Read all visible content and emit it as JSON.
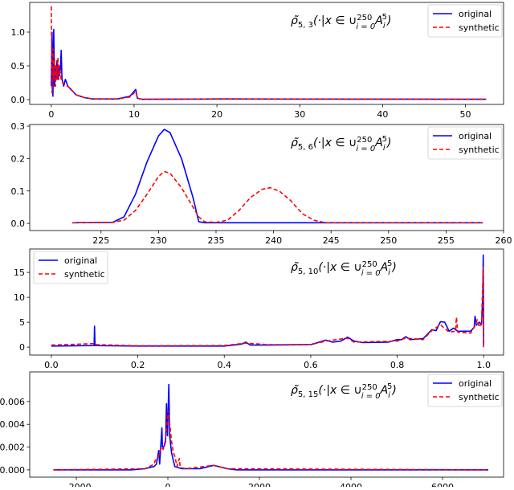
{
  "chart_data": [
    {
      "type": "line",
      "title": {
        "rho": "ρ̃",
        "sub": "5, 3",
        "cond": "(·|x ∈ ∪",
        "sup_n": "250",
        "sub_i": "i = 0",
        "A": "A",
        "A_sub": "i",
        "A_sup": "5",
        "close": ")"
      },
      "xlim": [
        -2.6,
        54.6
      ],
      "ylim": [
        -0.071,
        1.44
      ],
      "xticks": [
        0,
        10,
        20,
        30,
        40,
        50
      ],
      "xtick_labels": [
        "0",
        "10",
        "20",
        "30",
        "40",
        "50"
      ],
      "yticks": [
        0,
        0.5,
        1.0
      ],
      "ytick_labels": [
        "0.0",
        "0.5",
        "1.0"
      ],
      "legend": "upper-right",
      "grid": false,
      "series": [
        {
          "name": "original",
          "color": "#0000ff",
          "style": "solid",
          "x": [
            0,
            0.1,
            0.2,
            0.3,
            0.4,
            0.5,
            0.6,
            0.7,
            0.8,
            0.9,
            1.0,
            1.1,
            1.2,
            1.3,
            1.5,
            1.7,
            2,
            3,
            4,
            5,
            8,
            9.5,
            10.2,
            10.4,
            11,
            20,
            52.5
          ],
          "y": [
            0.2,
            1.0,
            0.05,
            1.04,
            0.2,
            0.5,
            0.3,
            0.58,
            0.3,
            0.5,
            0.35,
            0.45,
            0.73,
            0.3,
            0.2,
            0.3,
            0.2,
            0.07,
            0.03,
            0.01,
            0.01,
            0.05,
            0.15,
            0.02,
            0.005,
            0.01,
            0.005
          ]
        },
        {
          "name": "synthetic",
          "color": "#ff0000",
          "style": "dashed",
          "x": [
            0,
            0.1,
            0.2,
            0.3,
            0.4,
            0.5,
            0.6,
            0.7,
            0.8,
            0.9,
            1.0,
            1.2,
            1.4,
            1.7,
            2,
            3,
            4,
            5,
            8,
            9.5,
            10.2,
            10.4,
            11,
            20,
            52.5
          ],
          "y": [
            1.38,
            0.1,
            0.75,
            0.3,
            0.6,
            0.2,
            0.5,
            0.3,
            0.62,
            0.3,
            0.5,
            0.3,
            0.25,
            0.2,
            0.2,
            0.07,
            0.03,
            0.01,
            0.01,
            0.04,
            0.12,
            0.02,
            0.005,
            0.01,
            0.005
          ]
        }
      ]
    },
    {
      "type": "line",
      "title": {
        "rho": "ρ̃",
        "sub": "5, 6",
        "cond": "(·|x ∈ ∪",
        "sup_n": "250",
        "sub_i": "i = 0",
        "A": "A",
        "A_sub": "i",
        "A_sup": "5",
        "close": ")"
      },
      "xlim": [
        218.8,
        260
      ],
      "ylim": [
        -0.022,
        0.305
      ],
      "xticks": [
        225,
        230,
        235,
        240,
        245,
        250,
        255,
        260
      ],
      "xtick_labels": [
        "225",
        "230",
        "235",
        "240",
        "245",
        "250",
        "255",
        "260"
      ],
      "yticks": [
        0,
        0.1,
        0.2,
        0.3
      ],
      "ytick_labels": [
        "0.0",
        "0.1",
        "0.2",
        "0.3"
      ],
      "legend": "upper-right",
      "grid": false,
      "series": [
        {
          "name": "original",
          "color": "#0000ff",
          "style": "solid",
          "x": [
            222.5,
            226,
            227,
            228,
            229,
            230,
            230.5,
            231,
            232,
            233,
            233.5,
            234,
            258.2
          ],
          "y": [
            0.002,
            0.003,
            0.02,
            0.09,
            0.19,
            0.27,
            0.29,
            0.28,
            0.2,
            0.08,
            0.005,
            0.002,
            0.002
          ]
        },
        {
          "name": "synthetic",
          "color": "#ff0000",
          "style": "dashed",
          "x": [
            222.5,
            226,
            227,
            228,
            229,
            230,
            230.5,
            231,
            232,
            233,
            233.5,
            234,
            235,
            236,
            237,
            238,
            239,
            239.7,
            240.5,
            241.5,
            242.5,
            243.5,
            244.5,
            258.2
          ],
          "y": [
            0.002,
            0.003,
            0.01,
            0.04,
            0.09,
            0.145,
            0.16,
            0.155,
            0.11,
            0.05,
            0.02,
            0.005,
            0.003,
            0.01,
            0.04,
            0.08,
            0.105,
            0.11,
            0.1,
            0.07,
            0.03,
            0.01,
            0.002,
            0.002
          ]
        }
      ]
    },
    {
      "type": "line",
      "title": {
        "rho": "ρ̃",
        "sub": "5, 10",
        "cond": "(·|x ∈ ∪",
        "sup_n": "250",
        "sub_i": "i = 0",
        "A": "A",
        "A_sub": "i",
        "A_sup": "5",
        "close": ")"
      },
      "xlim": [
        -0.05,
        1.046
      ],
      "ylim": [
        -1.6,
        19.7
      ],
      "xticks": [
        0,
        0.2,
        0.4,
        0.6,
        0.8,
        1.0
      ],
      "xtick_labels": [
        "0.0",
        "0.2",
        "0.4",
        "0.6",
        "0.8",
        "1.0"
      ],
      "yticks": [
        0,
        5,
        10,
        15
      ],
      "ytick_labels": [
        "0",
        "5",
        "10",
        "15"
      ],
      "legend": "upper-left",
      "grid": false,
      "series": [
        {
          "name": "original",
          "color": "#0000ff",
          "style": "solid",
          "x": [
            0,
            0.099,
            0.1,
            0.101,
            0.2,
            0.4,
            0.44,
            0.45,
            0.46,
            0.5,
            0.6,
            0.62,
            0.635,
            0.65,
            0.67,
            0.685,
            0.7,
            0.72,
            0.78,
            0.8,
            0.81,
            0.82,
            0.83,
            0.86,
            0.88,
            0.89,
            0.9,
            0.91,
            0.92,
            0.93,
            0.94,
            0.97,
            0.978,
            0.98,
            0.983,
            0.99,
            0.995,
            0.998,
            0.999,
            1.0
          ],
          "y": [
            0.2,
            0.3,
            4.2,
            0.3,
            0.2,
            0.2,
            0.6,
            1.0,
            0.4,
            0.4,
            0.5,
            1.0,
            1.4,
            1.0,
            1.2,
            2.0,
            1.2,
            0.9,
            1.0,
            1.5,
            1.5,
            2.1,
            1.5,
            1.7,
            3.5,
            3.3,
            5.1,
            5.0,
            3.2,
            3.8,
            3.2,
            3.2,
            4.0,
            6.2,
            4.4,
            5.0,
            4.5,
            10,
            18.5,
            0
          ]
        },
        {
          "name": "synthetic",
          "color": "#ff0000",
          "style": "dashed",
          "x": [
            0,
            0.05,
            0.1,
            0.101,
            0.2,
            0.4,
            0.45,
            0.5,
            0.6,
            0.635,
            0.685,
            0.7,
            0.8,
            0.82,
            0.86,
            0.88,
            0.9,
            0.92,
            0.935,
            0.937,
            0.94,
            0.97,
            0.98,
            0.985,
            0.99,
            0.995,
            0.999,
            1.0
          ],
          "y": [
            0.4,
            0.55,
            0.7,
            0.5,
            0.25,
            0.3,
            0.8,
            0.5,
            0.5,
            1.2,
            1.8,
            1.0,
            1.2,
            1.8,
            1.5,
            3.3,
            4.5,
            3.0,
            3.2,
            6.0,
            3.0,
            2.8,
            4.3,
            5.5,
            4.0,
            4.8,
            16,
            0
          ]
        }
      ]
    },
    {
      "type": "line",
      "title": {
        "rho": "ρ̃",
        "sub": "5, 15",
        "cond": "(·|x ∈ ∪",
        "sup_n": "250",
        "sub_i": "i = 0",
        "A": "A",
        "A_sub": "i",
        "A_sup": "5",
        "close": ")"
      },
      "xlim": [
        -3018,
        7333
      ],
      "ylim": [
        -0.00064,
        0.0086
      ],
      "xticks": [
        -2000,
        0,
        2000,
        4000,
        6000
      ],
      "xtick_labels": [
        "−2000",
        "0",
        "2000",
        "4000",
        "6000"
      ],
      "yticks": [
        0,
        0.002,
        0.004,
        0.006
      ],
      "ytick_labels": [
        "0.000",
        "0.002",
        "0.004",
        "0.006"
      ],
      "legend": "upper-right",
      "grid": false,
      "series": [
        {
          "name": "original",
          "color": "#0000ff",
          "style": "solid",
          "x": [
            -2500,
            -800,
            -500,
            -300,
            -250,
            -200,
            -180,
            -130,
            -120,
            -80,
            -50,
            -30,
            -10,
            20,
            40,
            80,
            150,
            300,
            700,
            900,
            1000,
            1100,
            1300,
            1500,
            7000
          ],
          "y": [
            0,
            0,
            0.0001,
            0.0003,
            0.0005,
            0.0017,
            0.0005,
            0.0037,
            0.002,
            0.0021,
            0.0025,
            0.0058,
            0.003,
            0.0075,
            0.003,
            0.0015,
            0.0003,
            0.0001,
            0.0001,
            0.0003,
            0.0004,
            0.0003,
            0.0001,
            0,
            0
          ]
        },
        {
          "name": "synthetic",
          "color": "#ff0000",
          "style": "dashed",
          "x": [
            -2500,
            -500,
            -300,
            -280,
            -200,
            -150,
            -100,
            -60,
            -20,
            0,
            30,
            80,
            120,
            150,
            200,
            250,
            270,
            400,
            1000,
            1300,
            7000
          ],
          "y": [
            0,
            0.0001,
            0.0005,
            0.0008,
            0.0012,
            0.002,
            0.0018,
            0.0025,
            0.004,
            0.0052,
            0.0045,
            0.0025,
            0.0015,
            0.0012,
            0.0003,
            0.001,
            0.0002,
            0.0001,
            0.0004,
            0.0001,
            0
          ]
        }
      ]
    }
  ]
}
